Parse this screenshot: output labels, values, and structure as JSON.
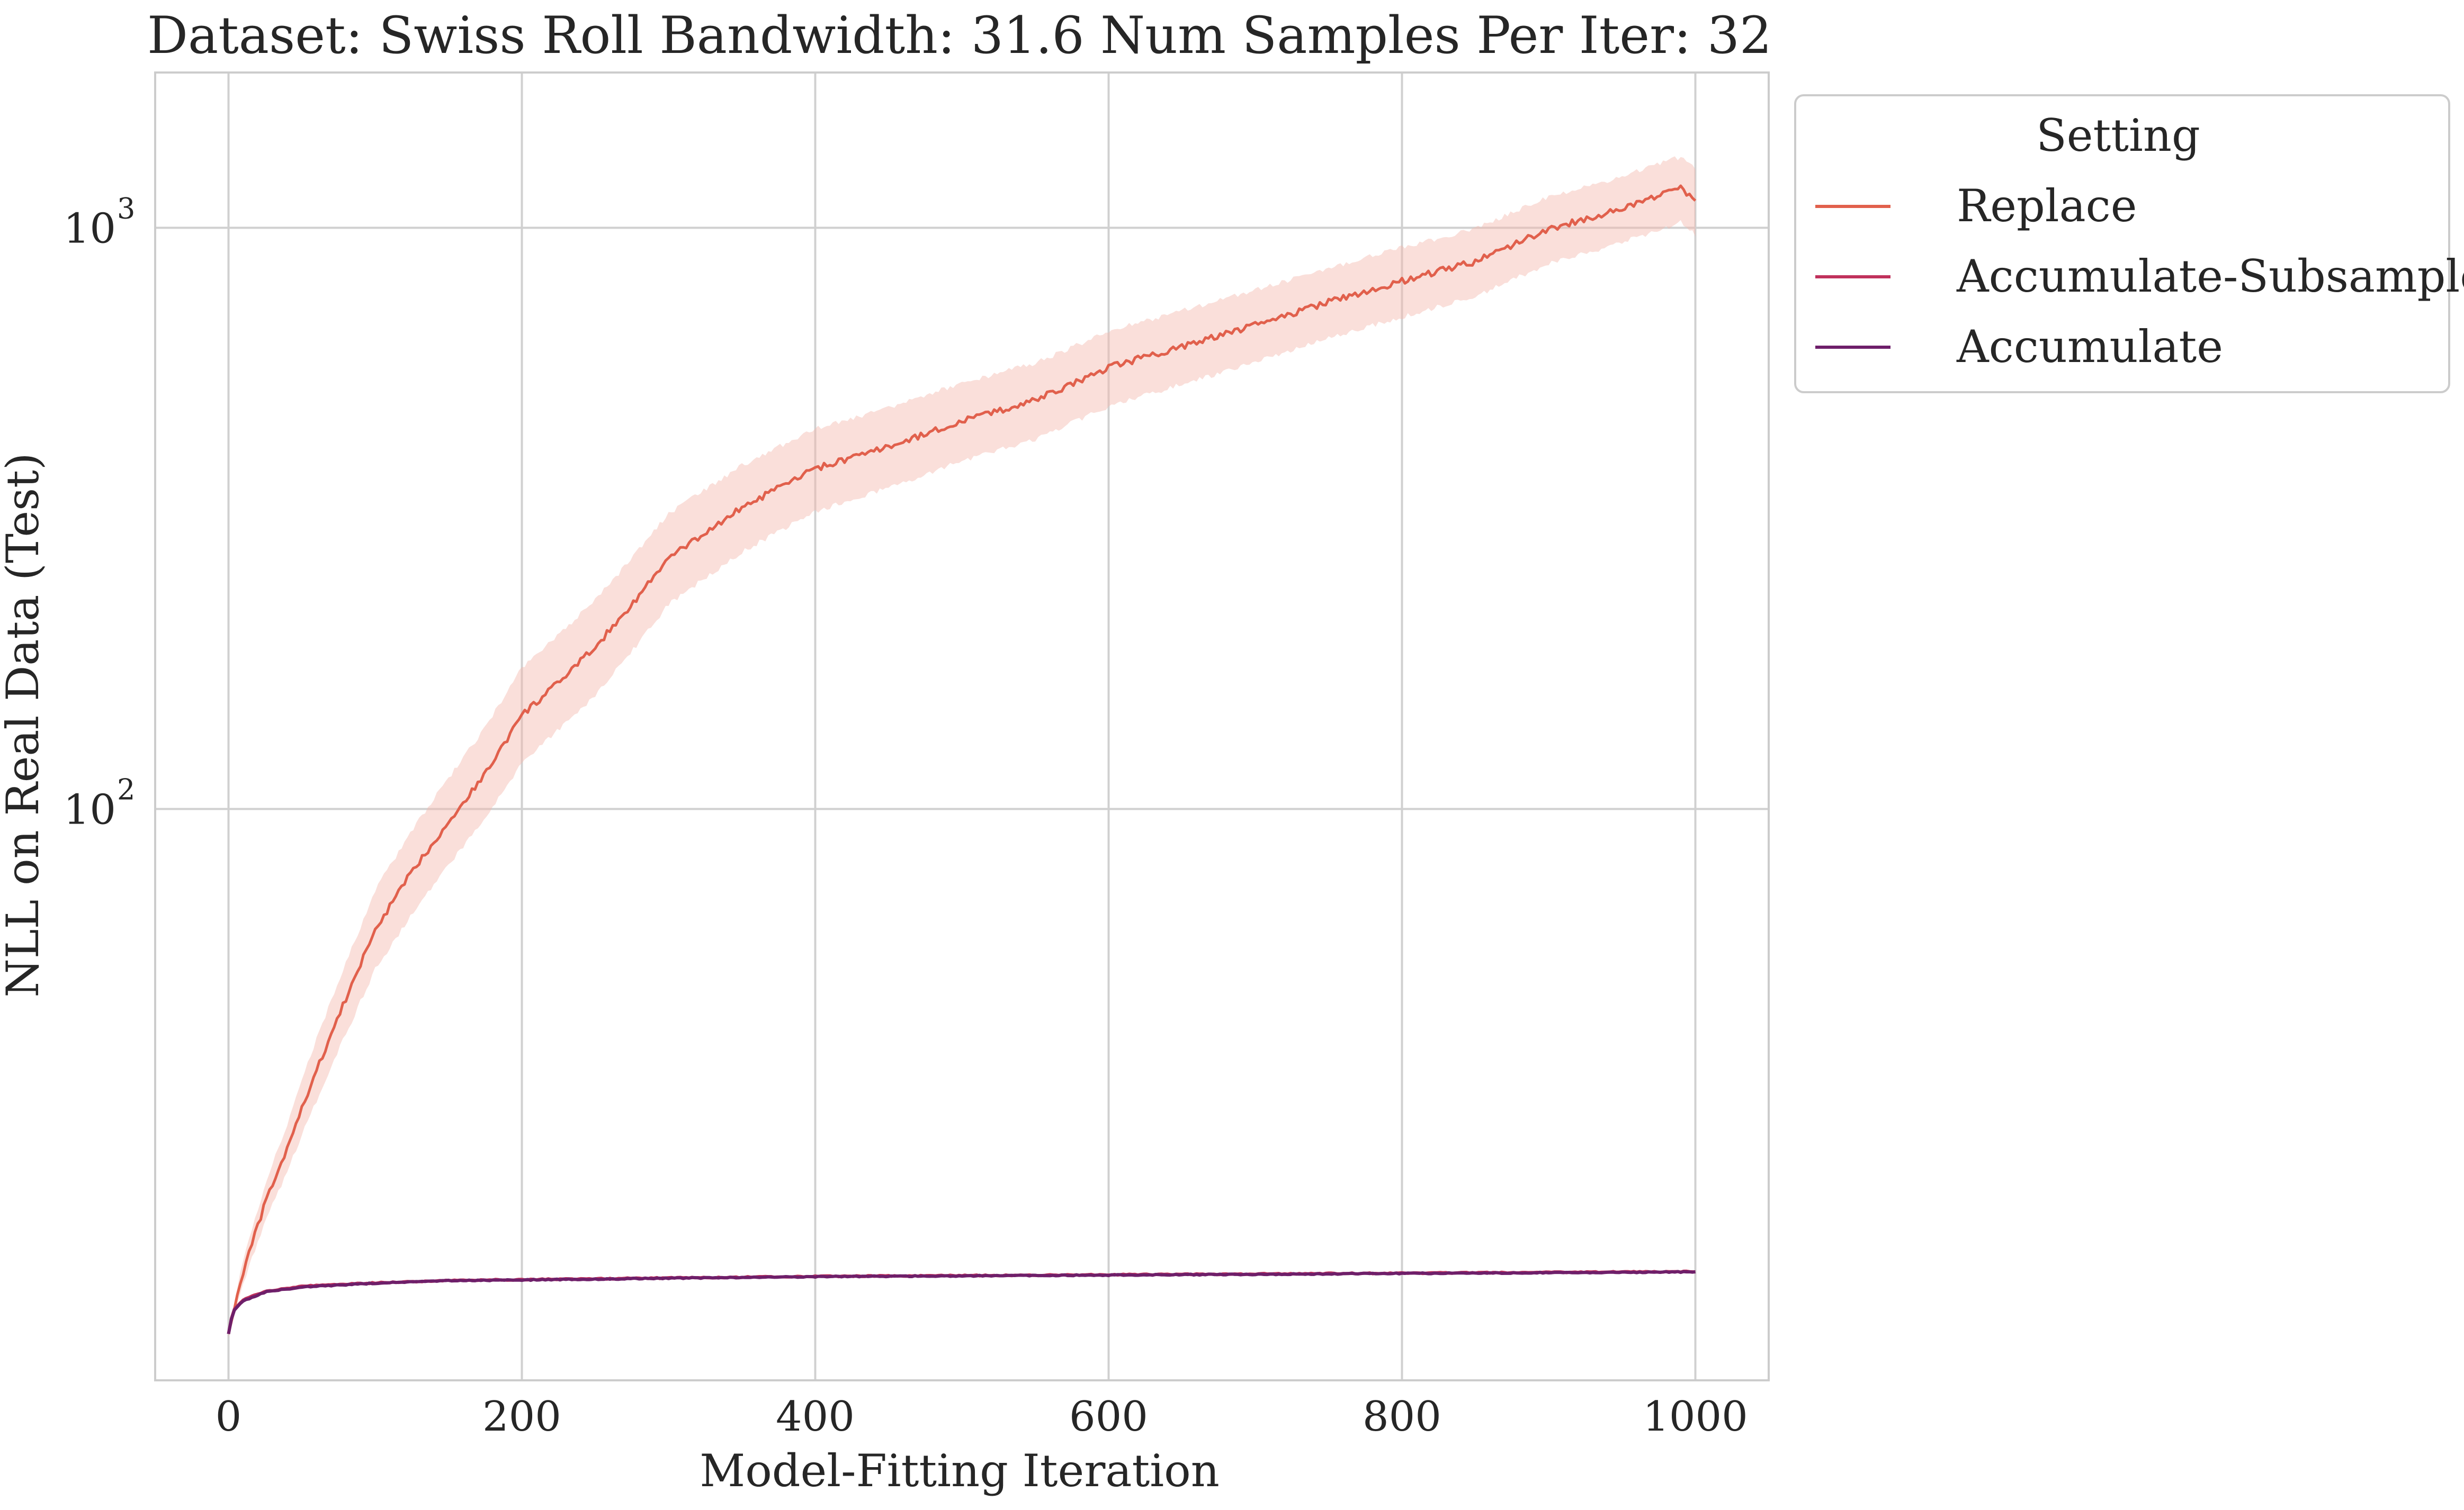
{
  "chart_data": {
    "type": "line",
    "title": "Dataset: Swiss Roll Bandwidth: 31.6 Num Samples Per Iter: 32",
    "xlabel": "Model-Fitting Iteration",
    "ylabel": "NLL on Real Data (Test)",
    "xlim": [
      -50,
      1050
    ],
    "ylim": [
      10.4,
      1850
    ],
    "yscale": "log",
    "grid": true,
    "x_ticks": [
      0,
      200,
      400,
      600,
      800,
      1000
    ],
    "x_tick_labels": [
      "0",
      "200",
      "400",
      "600",
      "800",
      "1000"
    ],
    "y_ticks": [
      {
        "value": 100,
        "base": "10",
        "exp": "2"
      },
      {
        "value": 1000,
        "base": "10",
        "exp": "3"
      }
    ],
    "legend": {
      "title": "Setting",
      "placement": "outside-upper-right"
    },
    "series": [
      {
        "name": "Replace",
        "color": "#e1604c",
        "band_color": "#f3b8ac",
        "x": [
          0,
          10,
          25,
          40,
          55,
          75,
          100,
          125,
          150,
          175,
          200,
          225,
          250,
          275,
          300,
          350,
          400,
          450,
          500,
          550,
          600,
          650,
          700,
          750,
          800,
          850,
          900,
          950,
          990,
          1000
        ],
        "y": [
          12.5,
          16,
          21,
          26,
          33,
          44,
          62,
          78,
          95,
          115,
          145,
          165,
          190,
          225,
          270,
          330,
          385,
          420,
          465,
          505,
          575,
          625,
          680,
          745,
          810,
          875,
          995,
          1080,
          1170,
          1120
        ],
        "lower": [
          12.3,
          15.3,
          19.5,
          23.8,
          29.5,
          38.5,
          53,
          66,
          80,
          96,
          120,
          137,
          157,
          187,
          225,
          277,
          325,
          357,
          397,
          433,
          493,
          538,
          587,
          645,
          703,
          762,
          868,
          943,
          1022,
          975
        ],
        "upper": [
          12.7,
          16.7,
          22.7,
          28.5,
          37.2,
          50.5,
          72.5,
          92,
          113,
          138,
          175,
          199,
          229,
          270,
          322,
          390,
          452,
          490,
          541,
          585,
          664,
          720,
          781,
          853,
          925,
          996,
          1130,
          1225,
          1325,
          1270
        ]
      },
      {
        "name": "Accumulate-Subsample",
        "color": "#c0315c",
        "x": [
          0,
          3,
          10,
          25,
          50,
          100,
          150,
          200,
          300,
          400,
          500,
          600,
          700,
          800,
          900,
          1000
        ],
        "y": [
          12.5,
          13.7,
          14.3,
          14.8,
          15.1,
          15.3,
          15.45,
          15.5,
          15.6,
          15.7,
          15.75,
          15.8,
          15.85,
          15.9,
          15.95,
          16.0
        ]
      },
      {
        "name": "Accumulate",
        "color": "#6e1f6a",
        "x": [
          0,
          3,
          10,
          25,
          50,
          100,
          150,
          200,
          300,
          400,
          500,
          600,
          700,
          800,
          900,
          1000
        ],
        "y": [
          12.5,
          13.65,
          14.25,
          14.75,
          15.05,
          15.28,
          15.43,
          15.48,
          15.58,
          15.68,
          15.73,
          15.78,
          15.83,
          15.88,
          15.93,
          15.98
        ]
      }
    ]
  }
}
